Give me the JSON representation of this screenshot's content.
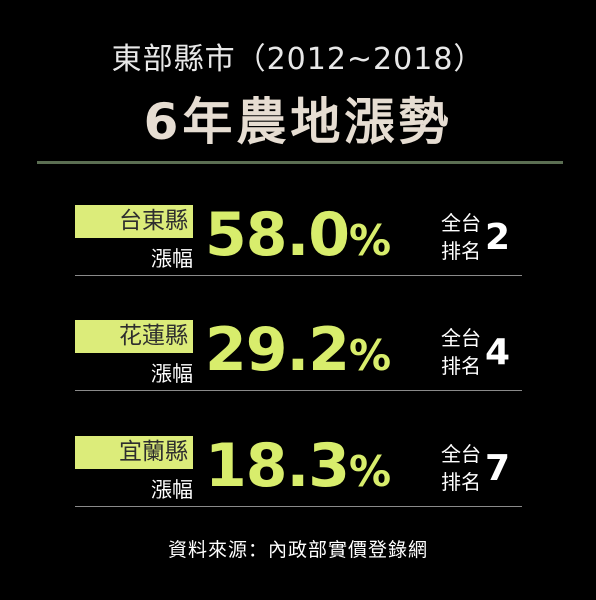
{
  "header": {
    "title_line1": "東部縣市（2012~2018）",
    "title_line2": "6年農地漲勢"
  },
  "rows": [
    {
      "county": "台東縣",
      "label": "漲幅",
      "value": "58.0",
      "unit": "%",
      "rank_line1": "全台",
      "rank_line2": "排名",
      "rank": "2"
    },
    {
      "county": "花蓮縣",
      "label": "漲幅",
      "value": "29.2",
      "unit": "%",
      "rank_line1": "全台",
      "rank_line2": "排名",
      "rank": "4"
    },
    {
      "county": "宜蘭縣",
      "label": "漲幅",
      "value": "18.3",
      "unit": "%",
      "rank_line1": "全台",
      "rank_line2": "排名",
      "rank": "7"
    }
  ],
  "footer": {
    "source": "資料來源：內政部實價登錄網"
  },
  "colors": {
    "background": "#000000",
    "accent_green": "#d8ed6c",
    "label_bg": "#dcec7a",
    "divider": "#5b6e52"
  }
}
